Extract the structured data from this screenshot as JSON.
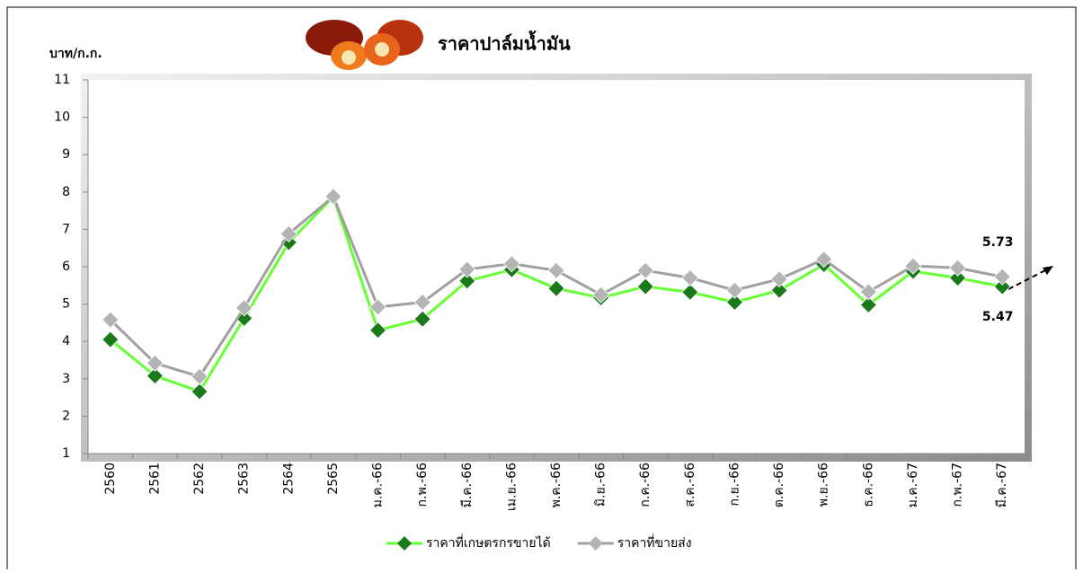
{
  "chart_data": {
    "type": "line",
    "title": "ราคาปาล์มน้ำมัน",
    "y_label": "บาท/ก.ก.",
    "categories": [
      "2560",
      "2561",
      "2562",
      "2563",
      "2564",
      "2565",
      "ม.ค.-66",
      "ก.พ.-66",
      "มี.ค.-66",
      "เม.ย.-66",
      "พ.ค.-66",
      "มิ.ย.-66",
      "ก.ค.-66",
      "ส.ค.-66",
      "ก.ย.-66",
      "ต.ค.-66",
      "พ.ย.-66",
      "ธ.ค.-66",
      "ม.ค.-67",
      "ก.พ.-67",
      "มี.ค.-67"
    ],
    "series": [
      {
        "name": "ราคาที่เกษตรกรขายได้",
        "color": "#66ff33",
        "marker_color": "#1a7a1a",
        "values": [
          4.05,
          3.08,
          2.66,
          4.62,
          6.65,
          7.87,
          4.3,
          4.6,
          5.62,
          5.92,
          5.42,
          5.17,
          5.47,
          5.32,
          5.05,
          5.37,
          6.06,
          4.98,
          5.88,
          5.7,
          5.47
        ]
      },
      {
        "name": "ราคาที่ขายส่ง",
        "color": "#a0a0a0",
        "marker_color": "#b4b4b4",
        "values": [
          4.58,
          3.42,
          3.06,
          4.9,
          6.88,
          7.88,
          4.92,
          5.05,
          5.93,
          6.08,
          5.9,
          5.25,
          5.9,
          5.7,
          5.37,
          5.67,
          6.2,
          5.33,
          6.02,
          5.97,
          5.73
        ]
      }
    ],
    "ylim": [
      1,
      11
    ],
    "yticks": [
      1,
      2,
      3,
      4,
      5,
      6,
      7,
      8,
      9,
      10,
      11
    ],
    "legend": "bottom"
  }
}
